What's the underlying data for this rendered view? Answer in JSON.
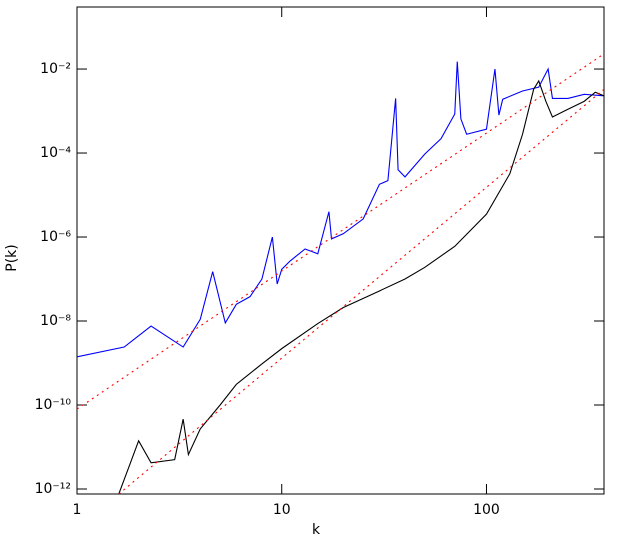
{
  "chart_data": {
    "type": "line",
    "xlabel": "k",
    "ylabel": "P(k)",
    "xscale": "log",
    "yscale": "log",
    "xlim": [
      1,
      375
    ],
    "ylim": [
      7.6e-13,
      0.3
    ],
    "xticks": [
      1,
      10,
      100
    ],
    "yticks": [
      {
        "value": 1e-12,
        "label": "10⁻¹²"
      },
      {
        "value": 1e-10,
        "label": "10⁻¹⁰"
      },
      {
        "value": 1e-08,
        "label": "10⁻⁸"
      },
      {
        "value": 1e-06,
        "label": "10⁻⁶"
      },
      {
        "value": 0.0001,
        "label": "10⁻⁴"
      },
      {
        "value": 0.01,
        "label": "10⁻²"
      }
    ],
    "series": [
      {
        "color": "#0000ff",
        "dash": false,
        "x": [
          1,
          1.7,
          2.3,
          3.3,
          4,
          4.6,
          5.3,
          6,
          7,
          8,
          9,
          9.5,
          10,
          11,
          13,
          15,
          17,
          17.5,
          20,
          25,
          30,
          33,
          36,
          37,
          40,
          50,
          60,
          70,
          72,
          75,
          80,
          100,
          110,
          115,
          120,
          150,
          180,
          200,
          210,
          250,
          300,
          375
        ],
        "y": [
          1.4e-09,
          2.4e-09,
          7.6e-09,
          2.4e-09,
          1.1e-08,
          1.5e-07,
          9e-09,
          2.5e-08,
          3.8e-08,
          1e-07,
          1e-06,
          7.6e-08,
          1.7e-07,
          2.7e-07,
          5.2e-07,
          4e-07,
          4e-06,
          9e-07,
          1.2e-06,
          2.7e-06,
          1.8e-05,
          2.2e-05,
          0.002,
          4e-05,
          2.7e-05,
          9.5e-05,
          0.00022,
          0.00085,
          0.015,
          0.00065,
          0.00028,
          0.00037,
          0.01,
          0.0008,
          0.0019,
          0.003,
          0.0037,
          0.01,
          0.002,
          0.002,
          0.0025,
          0.0023
        ]
      },
      {
        "color": "#000000",
        "dash": false,
        "x": [
          1.6,
          2,
          2.3,
          3,
          3.3,
          3.5,
          4,
          5,
          6,
          8,
          10,
          15,
          20,
          30,
          40,
          50,
          70,
          100,
          130,
          150,
          170,
          180,
          195,
          210,
          250,
          300,
          340,
          375
        ],
        "y": [
          7.6e-13,
          1.4e-11,
          4.2e-12,
          5e-12,
          4.6e-11,
          6.6e-12,
          2.7e-11,
          1e-10,
          3.1e-10,
          9.5e-10,
          2.2e-09,
          8.7e-09,
          2.1e-08,
          5.2e-08,
          1e-07,
          1.9e-07,
          6e-07,
          3.5e-06,
          3.2e-05,
          0.00028,
          0.0033,
          0.0052,
          0.0017,
          0.00072,
          0.0011,
          0.0017,
          0.0028,
          0.0023
        ]
      },
      {
        "color": "#ff0000",
        "dash": true,
        "x": [
          1,
          375
        ],
        "y": [
          8e-11,
          0.023
        ]
      },
      {
        "color": "#ff0000",
        "dash": true,
        "x": [
          1.6,
          375
        ],
        "y": [
          7.6e-13,
          0.0033
        ]
      }
    ]
  }
}
